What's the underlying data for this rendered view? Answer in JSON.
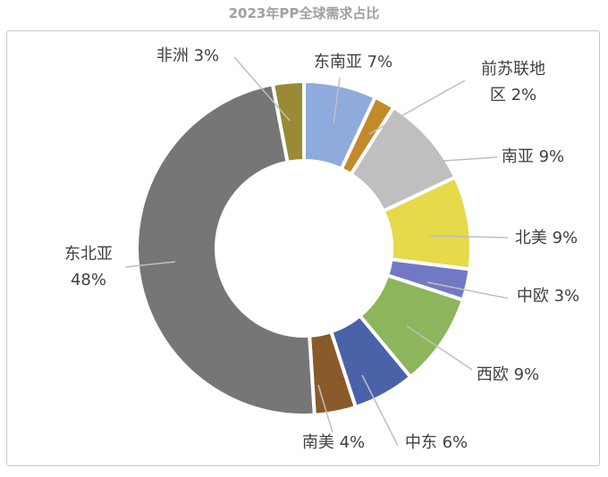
{
  "title": "2023年PP全球需求占比",
  "chart_data": {
    "type": "pie",
    "variant": "donut",
    "title": "2023年PP全球需求占比",
    "unit": "%",
    "slices": [
      {
        "name": "东南亚",
        "value": 7,
        "label": "东南亚 7%",
        "color": "#8faadc"
      },
      {
        "name": "前苏联地区",
        "value": 2,
        "label": "前苏联地区 2%",
        "label_lines": [
          "前苏联地",
          "区 2%"
        ],
        "color": "#c28a2a"
      },
      {
        "name": "南亚",
        "value": 9,
        "label": "南亚 9%",
        "color": "#bfbfbf"
      },
      {
        "name": "北美",
        "value": 9,
        "label": "北美 9%",
        "color": "#e6d94a"
      },
      {
        "name": "中欧",
        "value": 3,
        "label": "中欧 3%",
        "color": "#7279c4"
      },
      {
        "name": "西欧",
        "value": 9,
        "label": "西欧 9%",
        "color": "#8db55c"
      },
      {
        "name": "中东",
        "value": 6,
        "label": "中东 6%",
        "color": "#4a62a8"
      },
      {
        "name": "南美",
        "value": 4,
        "label": "南美 4%",
        "color": "#8a5a2a"
      },
      {
        "name": "东北亚",
        "value": 48,
        "label": "东北亚 48%",
        "label_lines": [
          "东北亚",
          "48%"
        ],
        "color": "#767676"
      },
      {
        "name": "非洲",
        "value": 3,
        "label": "非洲 3%",
        "color": "#9a8a35"
      }
    ]
  }
}
